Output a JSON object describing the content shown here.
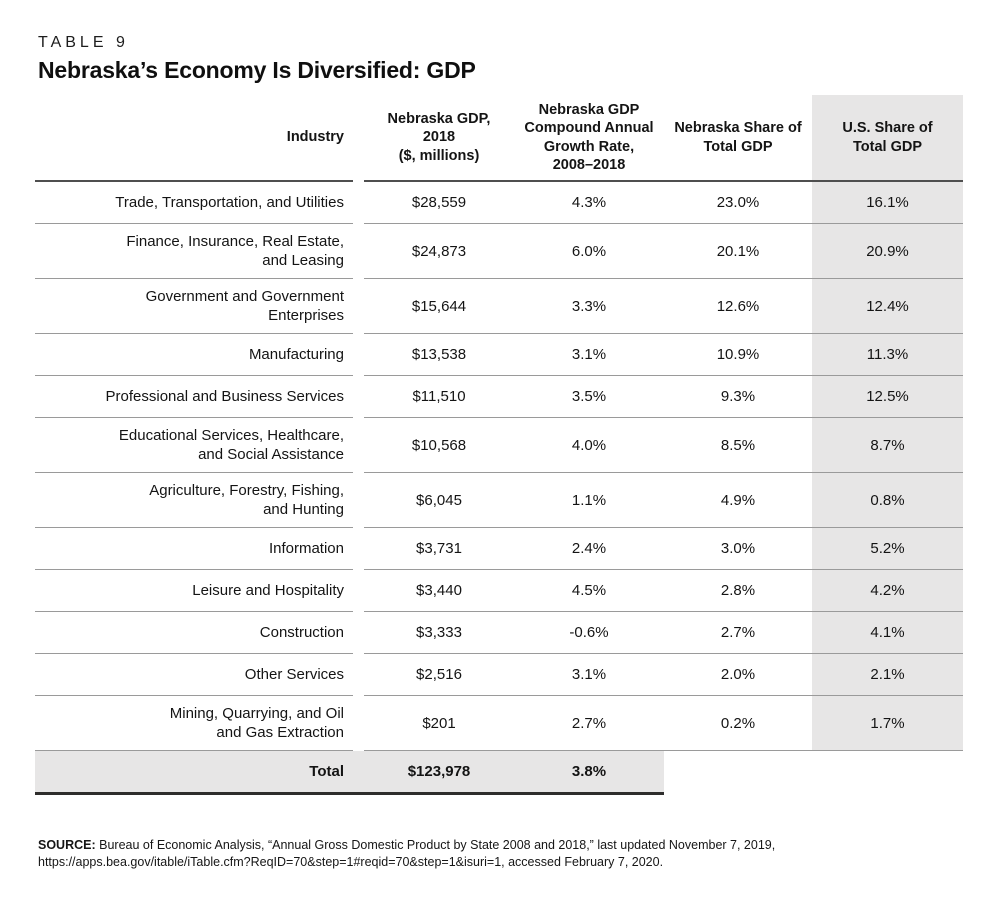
{
  "header": {
    "table_label": "TABLE 9",
    "title": "Nebraska’s Economy Is Diversified: GDP"
  },
  "table": {
    "columns": [
      "Industry",
      "Nebraska GDP,\n2018\n($, millions)",
      "Nebraska GDP\nCompound Annual\nGrowth Rate,\n2008–2018",
      "Nebraska Share of\nTotal GDP",
      "U.S. Share of\nTotal GDP"
    ],
    "rows": [
      {
        "industry": "Trade, Transportation, and Utilities",
        "gdp_2018_millions": "$28,559",
        "cagr_2008_2018": "4.3%",
        "ne_share": "23.0%",
        "us_share": "16.1%"
      },
      {
        "industry": "Finance, Insurance, Real Estate,\nand Leasing",
        "gdp_2018_millions": "$24,873",
        "cagr_2008_2018": "6.0%",
        "ne_share": "20.1%",
        "us_share": "20.9%"
      },
      {
        "industry": "Government and Government\nEnterprises",
        "gdp_2018_millions": "$15,644",
        "cagr_2008_2018": "3.3%",
        "ne_share": "12.6%",
        "us_share": "12.4%"
      },
      {
        "industry": "Manufacturing",
        "gdp_2018_millions": "$13,538",
        "cagr_2008_2018": "3.1%",
        "ne_share": "10.9%",
        "us_share": "11.3%"
      },
      {
        "industry": "Professional and Business Services",
        "gdp_2018_millions": "$11,510",
        "cagr_2008_2018": "3.5%",
        "ne_share": "9.3%",
        "us_share": "12.5%"
      },
      {
        "industry": "Educational Services, Healthcare,\nand Social Assistance",
        "gdp_2018_millions": "$10,568",
        "cagr_2008_2018": "4.0%",
        "ne_share": "8.5%",
        "us_share": "8.7%"
      },
      {
        "industry": "Agriculture, Forestry, Fishing,\nand Hunting",
        "gdp_2018_millions": "$6,045",
        "cagr_2008_2018": "1.1%",
        "ne_share": "4.9%",
        "us_share": "0.8%"
      },
      {
        "industry": "Information",
        "gdp_2018_millions": "$3,731",
        "cagr_2008_2018": "2.4%",
        "ne_share": "3.0%",
        "us_share": "5.2%"
      },
      {
        "industry": "Leisure and Hospitality",
        "gdp_2018_millions": "$3,440",
        "cagr_2008_2018": "4.5%",
        "ne_share": "2.8%",
        "us_share": "4.2%"
      },
      {
        "industry": "Construction",
        "gdp_2018_millions": "$3,333",
        "cagr_2008_2018": "-0.6%",
        "ne_share": "2.7%",
        "us_share": "4.1%"
      },
      {
        "industry": "Other Services",
        "gdp_2018_millions": "$2,516",
        "cagr_2008_2018": "3.1%",
        "ne_share": "2.0%",
        "us_share": "2.1%"
      },
      {
        "industry": "Mining, Quarrying, and Oil\nand Gas Extraction",
        "gdp_2018_millions": "$201",
        "cagr_2008_2018": "2.7%",
        "ne_share": "0.2%",
        "us_share": "1.7%"
      }
    ],
    "total": {
      "label": "Total",
      "gdp_2018_millions": "$123,978",
      "cagr_2008_2018": "3.8%"
    }
  },
  "source": {
    "label": "SOURCE:",
    "text": "Bureau of Economic Analysis, “Annual Gross Domestic Product by State 2008 and 2018,” last updated November 7, 2019,\nhttps://apps.bea.gov/itable/iTable.cfm?ReqID=70&step=1#reqid=70&step=1&isuri=1, accessed February 7, 2020."
  },
  "colors": {
    "shade": "#e7e6e6",
    "header_rule": "#4f4f4f",
    "row_rule": "#9a9a9a",
    "total_rule": "#2e2d2c",
    "text": "#141414"
  }
}
